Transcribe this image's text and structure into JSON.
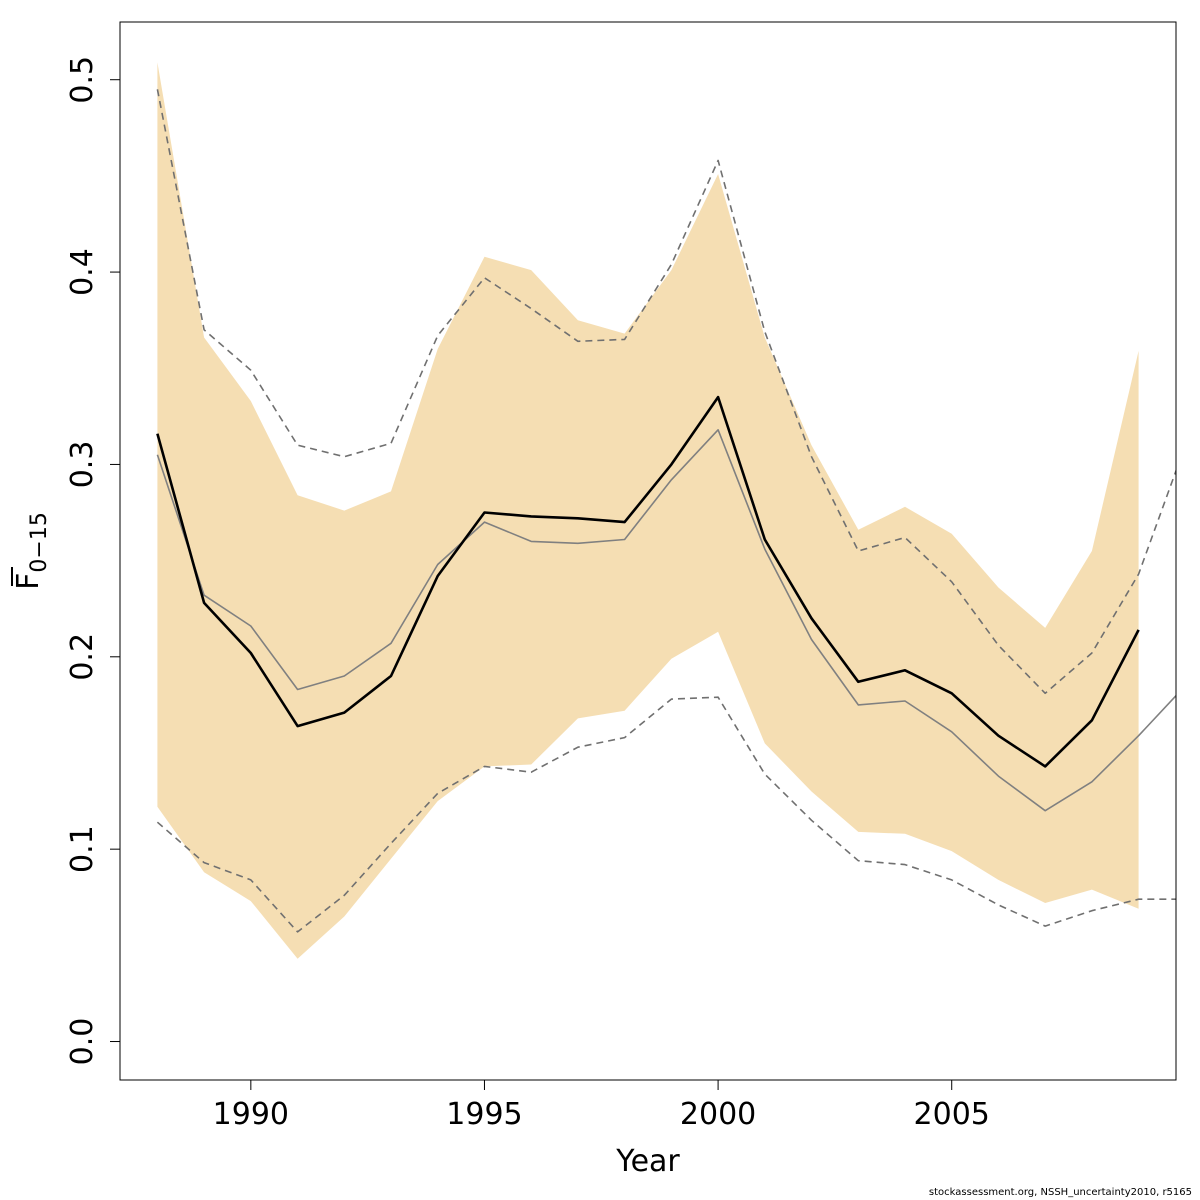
{
  "chart_data": {
    "type": "line",
    "xlabel": "Year",
    "ylabel": {
      "base": "F",
      "subscript": "0−15"
    },
    "xlim": [
      1987.2,
      2009.8
    ],
    "ylim": [
      -0.02,
      0.53
    ],
    "x_ticks": [
      1990,
      1995,
      2000,
      2005
    ],
    "x_tick_labels": [
      "1990",
      "1995",
      "2000",
      "2005"
    ],
    "y_ticks": [
      0.0,
      0.1,
      0.2,
      0.3,
      0.4,
      0.5
    ],
    "y_tick_labels": [
      "0.0",
      "0.1",
      "0.2",
      "0.3",
      "0.4",
      "0.5"
    ],
    "grid": false,
    "x": [
      1988,
      1989,
      1990,
      1991,
      1992,
      1993,
      1994,
      1995,
      1996,
      1997,
      1998,
      1999,
      2000,
      2001,
      2002,
      2003,
      2004,
      2005,
      2006,
      2007,
      2008,
      2009
    ],
    "band": {
      "color": "#f5deb3",
      "lower": [
        0.122,
        0.088,
        0.073,
        0.043,
        0.065,
        0.095,
        0.125,
        0.143,
        0.144,
        0.168,
        0.172,
        0.199,
        0.213,
        0.155,
        0.13,
        0.109,
        0.108,
        0.099,
        0.084,
        0.072,
        0.079,
        0.069
      ],
      "upper": [
        0.509,
        0.366,
        0.333,
        0.284,
        0.276,
        0.286,
        0.36,
        0.408,
        0.401,
        0.375,
        0.368,
        0.401,
        0.451,
        0.366,
        0.31,
        0.266,
        0.278,
        0.264,
        0.236,
        0.215,
        0.255,
        0.359
      ]
    },
    "series": [
      {
        "role": "point-estimate",
        "color": "#000000",
        "style": "solid-thick",
        "x": [
          1988,
          1989,
          1990,
          1991,
          1992,
          1993,
          1994,
          1995,
          1996,
          1997,
          1998,
          1999,
          2000,
          2001,
          2002,
          2003,
          2004,
          2005,
          2006,
          2007,
          2008,
          2009
        ],
        "values": [
          0.316,
          0.228,
          0.202,
          0.164,
          0.171,
          0.19,
          0.242,
          0.275,
          0.273,
          0.272,
          0.27,
          0.3,
          0.335,
          0.261,
          0.22,
          0.187,
          0.193,
          0.181,
          0.159,
          0.143,
          0.167,
          0.214
        ]
      },
      {
        "role": "median",
        "color": "#808080",
        "style": "solid-thin",
        "x": [
          1988,
          1989,
          1990,
          1991,
          1992,
          1993,
          1994,
          1995,
          1996,
          1997,
          1998,
          1999,
          2000,
          2001,
          2002,
          2003,
          2004,
          2005,
          2006,
          2007,
          2008,
          2009,
          2010
        ],
        "values": [
          0.305,
          0.232,
          0.216,
          0.183,
          0.19,
          0.207,
          0.248,
          0.27,
          0.26,
          0.259,
          0.261,
          0.292,
          0.318,
          0.256,
          0.209,
          0.175,
          0.177,
          0.161,
          0.138,
          0.12,
          0.135,
          0.159,
          0.185
        ]
      },
      {
        "role": "upper-bound",
        "color": "#707070",
        "style": "dashed",
        "x": [
          1988,
          1989,
          1990,
          1991,
          1992,
          1993,
          1994,
          1995,
          1996,
          1997,
          1998,
          1999,
          2000,
          2001,
          2002,
          2003,
          2004,
          2005,
          2006,
          2007,
          2008,
          2009,
          2010
        ],
        "values": [
          0.495,
          0.37,
          0.349,
          0.31,
          0.304,
          0.311,
          0.367,
          0.397,
          0.381,
          0.364,
          0.365,
          0.404,
          0.458,
          0.369,
          0.304,
          0.255,
          0.262,
          0.239,
          0.206,
          0.181,
          0.202,
          0.243,
          0.31
        ]
      },
      {
        "role": "lower-bound",
        "color": "#707070",
        "style": "dashed",
        "x": [
          1988,
          1989,
          1990,
          1991,
          1992,
          1993,
          1994,
          1995,
          1996,
          1997,
          1998,
          1999,
          2000,
          2001,
          2002,
          2003,
          2004,
          2005,
          2006,
          2007,
          2008,
          2009,
          2010
        ],
        "values": [
          0.114,
          0.093,
          0.084,
          0.057,
          0.076,
          0.103,
          0.129,
          0.143,
          0.14,
          0.153,
          0.158,
          0.178,
          0.179,
          0.139,
          0.115,
          0.094,
          0.092,
          0.084,
          0.071,
          0.06,
          0.068,
          0.074,
          0.074
        ]
      }
    ]
  },
  "footer": {
    "credit": "stockassessment.org, NSSH_uncertainty2010, r5165"
  }
}
